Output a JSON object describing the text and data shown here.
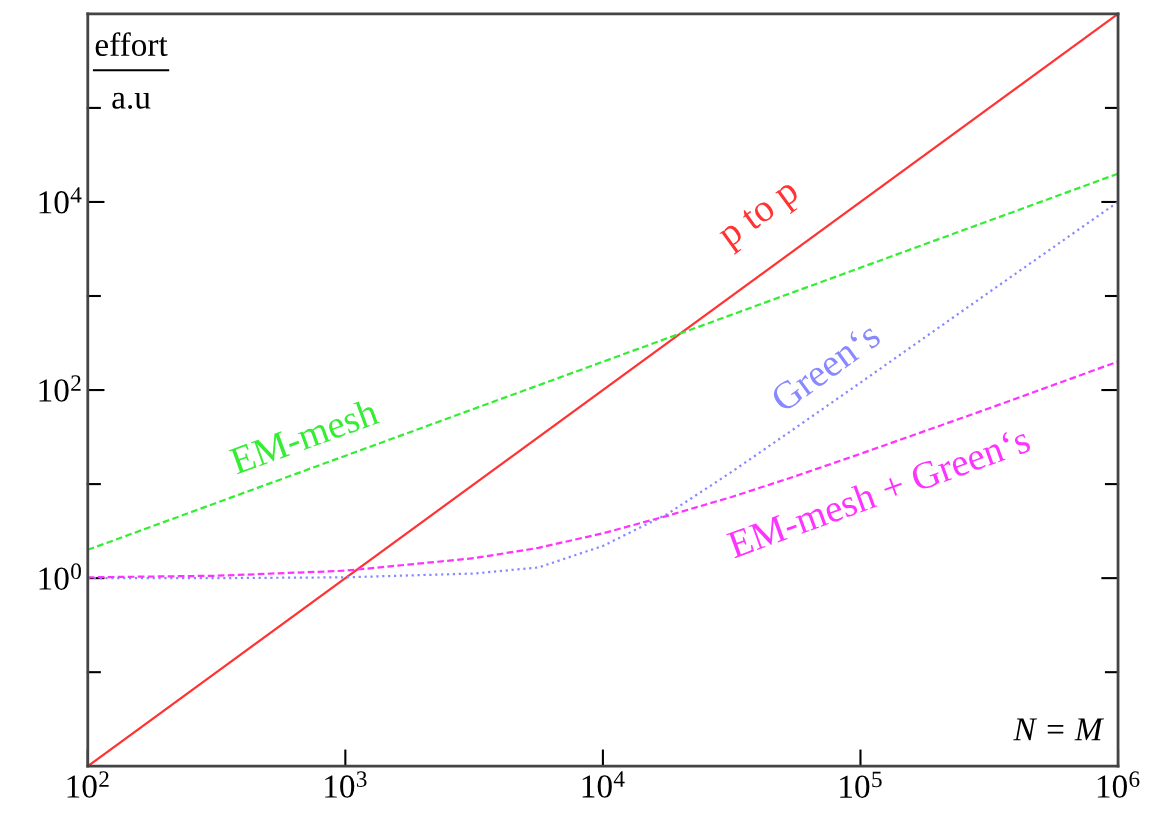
{
  "chart_data": {
    "type": "line",
    "ylabel": "effort",
    "annotations": [
      "a.u",
      "N = M"
    ],
    "log": "xy",
    "grid": false,
    "legend": false,
    "xlim": [
      100,
      1000000
    ],
    "ylim": [
      0.01,
      1000000
    ],
    "xticks": [
      {
        "value": 100,
        "label": "10$^{2}$"
      },
      {
        "value": 1000,
        "label": "10$^{3}$"
      },
      {
        "value": 10000,
        "label": "10$^{4}$"
      },
      {
        "value": 100000,
        "label": "10$^{5}$"
      },
      {
        "value": 1000000,
        "label": "10$^{6}$"
      }
    ],
    "yticks": [
      {
        "value": 0.1,
        "label": null
      },
      {
        "value": 1,
        "label": "10$^{0}$"
      },
      {
        "value": 10,
        "label": null
      },
      {
        "value": 100,
        "label": "10$^{2}$"
      },
      {
        "value": 1000,
        "label": null
      },
      {
        "value": 10000,
        "label": "10$^{4}$"
      },
      {
        "value": 100000,
        "label": null
      }
    ],
    "series": [
      {
        "name": "p to p",
        "color": "#ff3333",
        "line_style": "solid",
        "x": [
          100,
          1000000
        ],
        "values": [
          0.01,
          1000000
        ]
      },
      {
        "name": "EM-mesh",
        "color": "#33ee33",
        "line_style": "dashed",
        "x": [
          100,
          1000000
        ],
        "values": [
          2,
          20000
        ]
      },
      {
        "name": "Green‘s",
        "color": "#8888ff",
        "line_style": "dotted",
        "x": [
          100,
          316,
          1000,
          3162,
          5623,
          10000,
          17783,
          31623,
          56234,
          100000,
          316228,
          1000000
        ],
        "values": [
          1,
          1,
          1.02,
          1.12,
          1.3,
          2.2,
          4.8,
          13.5,
          40,
          120,
          1100,
          10000
        ]
      },
      {
        "name": "EM-mesh + Green‘s",
        "color": "#ff33ff",
        "line_style": "dashed",
        "x": [
          100,
          316,
          1000,
          3162,
          5623,
          10000,
          17783,
          31623,
          56234,
          100000,
          316228,
          1000000
        ],
        "values": [
          1.02,
          1.06,
          1.2,
          1.63,
          2.1,
          3,
          4.6,
          7.3,
          12.2,
          21,
          64,
          201
        ]
      }
    ]
  }
}
